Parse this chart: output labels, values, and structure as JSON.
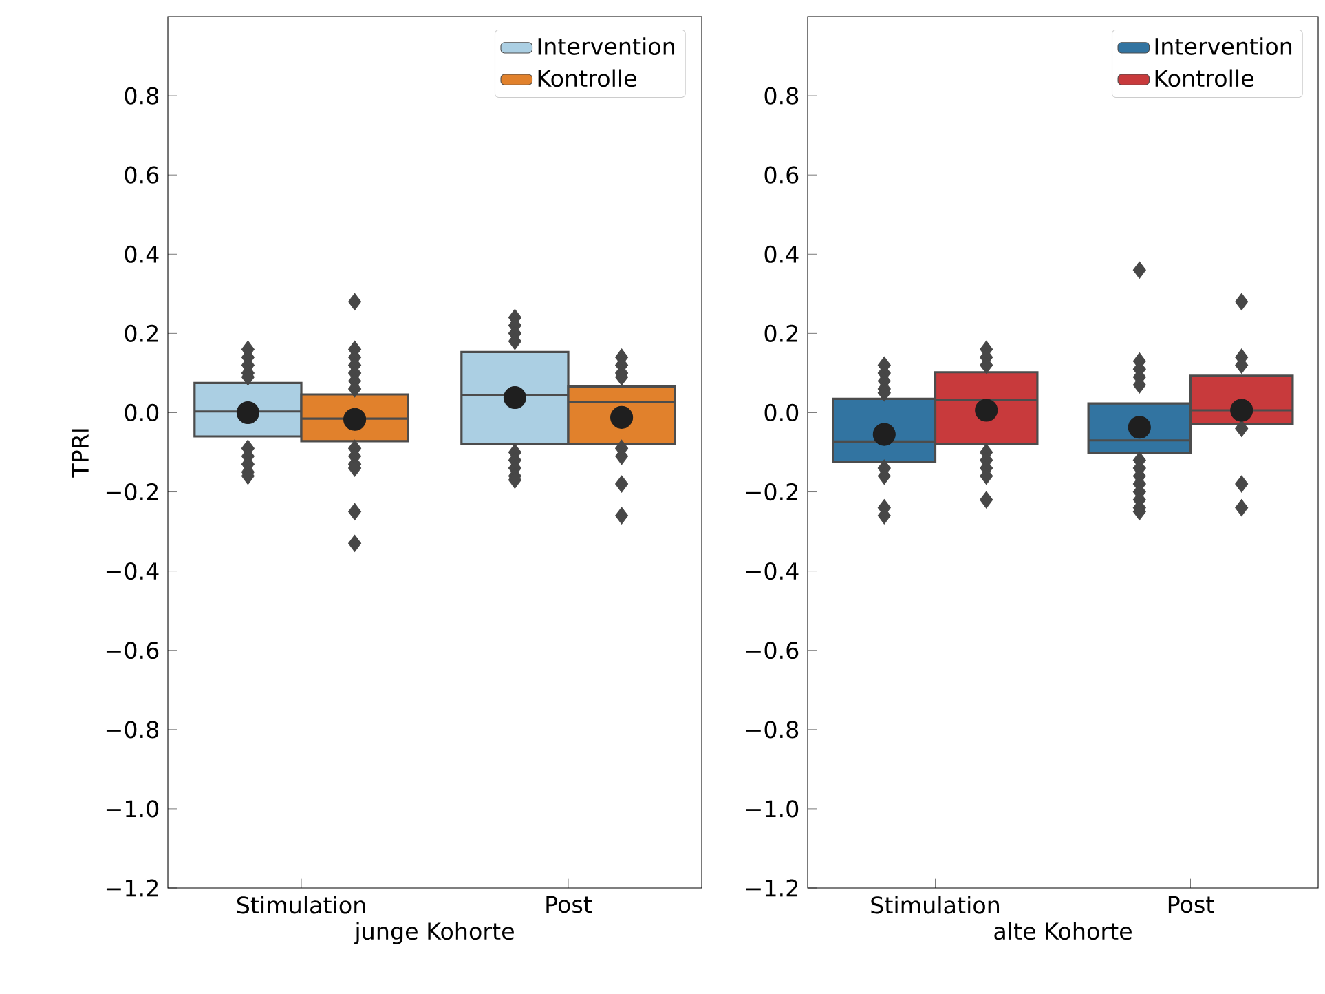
{
  "chart_data": [
    {
      "type": "box",
      "categories": [
        "Stimulation",
        "Post"
      ],
      "xlabel": "junge Kohorte",
      "ylabel": "TPRI",
      "ylim": [
        -1.2,
        1.0
      ],
      "yticks": [
        {
          "value": -1.2,
          "label": "−1.2"
        },
        {
          "value": -1.0,
          "label": "−1.0"
        },
        {
          "value": -0.8,
          "label": "−0.8"
        },
        {
          "value": -0.6,
          "label": "−0.6"
        },
        {
          "value": -0.4,
          "label": "−0.4"
        },
        {
          "value": -0.2,
          "label": "−0.2"
        },
        {
          "value": 0.0,
          "label": "0.0"
        },
        {
          "value": 0.2,
          "label": "0.2"
        },
        {
          "value": 0.4,
          "label": "0.4"
        },
        {
          "value": 0.6,
          "label": "0.6"
        },
        {
          "value": 0.8,
          "label": "0.8"
        }
      ],
      "legend": "top right",
      "grid": false,
      "series": [
        {
          "name": "Intervention",
          "color": "#abcfe3",
          "boxes": [
            {
              "low": -0.06,
              "q1": -0.06,
              "median": 0.003,
              "q3": 0.075,
              "high": 0.075,
              "mean": 0.0,
              "outliers": [
                0.16,
                0.14,
                0.12,
                0.1,
                0.09,
                -0.09,
                -0.11,
                -0.13,
                -0.15,
                -0.16
              ]
            },
            {
              "low": -0.079,
              "q1": -0.079,
              "median": 0.044,
              "q3": 0.153,
              "high": 0.153,
              "mean": 0.038,
              "outliers": [
                0.24,
                0.22,
                0.2,
                0.18,
                -0.1,
                -0.12,
                -0.14,
                -0.16,
                -0.17
              ]
            }
          ]
        },
        {
          "name": "Kontrolle",
          "color": "#e1812c",
          "boxes": [
            {
              "low": -0.072,
              "q1": -0.072,
              "median": -0.015,
              "q3": 0.046,
              "high": 0.046,
              "mean": -0.017,
              "outliers": [
                0.28,
                0.16,
                0.14,
                0.12,
                0.1,
                0.08,
                0.06,
                -0.09,
                -0.11,
                -0.13,
                -0.14,
                -0.25,
                -0.33
              ]
            },
            {
              "low": -0.079,
              "q1": -0.079,
              "median": 0.027,
              "q3": 0.066,
              "high": 0.066,
              "mean": -0.012,
              "outliers": [
                0.14,
                0.12,
                0.1,
                0.09,
                -0.09,
                -0.11,
                -0.18,
                -0.26
              ]
            }
          ]
        }
      ]
    },
    {
      "type": "box",
      "categories": [
        "Stimulation",
        "Post"
      ],
      "xlabel": "alte Kohorte",
      "ylim": [
        -1.2,
        1.0
      ],
      "yticks": [
        {
          "value": -1.2,
          "label": "−1.2"
        },
        {
          "value": -1.0,
          "label": "−1.0"
        },
        {
          "value": -0.8,
          "label": "−0.8"
        },
        {
          "value": -0.6,
          "label": "−0.6"
        },
        {
          "value": -0.4,
          "label": "−0.4"
        },
        {
          "value": -0.2,
          "label": "−0.2"
        },
        {
          "value": 0.0,
          "label": "0.0"
        },
        {
          "value": 0.2,
          "label": "0.2"
        },
        {
          "value": 0.4,
          "label": "0.4"
        },
        {
          "value": 0.6,
          "label": "0.6"
        },
        {
          "value": 0.8,
          "label": "0.8"
        }
      ],
      "legend": "top right",
      "grid": false,
      "series": [
        {
          "name": "Intervention",
          "color": "#3274a1",
          "boxes": [
            {
              "low": -0.125,
              "q1": -0.125,
              "median": -0.073,
              "q3": 0.035,
              "high": 0.035,
              "mean": -0.055,
              "outliers": [
                0.12,
                0.1,
                0.08,
                0.06,
                0.05,
                -0.14,
                -0.16,
                -0.24,
                -0.26
              ]
            },
            {
              "low": -0.102,
              "q1": -0.102,
              "median": -0.07,
              "q3": 0.023,
              "high": 0.023,
              "mean": -0.037,
              "outliers": [
                0.36,
                0.13,
                0.11,
                0.09,
                0.07,
                -0.12,
                -0.14,
                -0.16,
                -0.18,
                -0.2,
                -0.22,
                -0.24,
                -0.25
              ]
            }
          ]
        },
        {
          "name": "Kontrolle",
          "color": "#c83a3c",
          "boxes": [
            {
              "low": -0.079,
              "q1": -0.079,
              "median": 0.032,
              "q3": 0.102,
              "high": 0.102,
              "mean": 0.006,
              "outliers": [
                0.16,
                0.14,
                0.12,
                -0.1,
                -0.12,
                -0.14,
                -0.16,
                -0.22
              ]
            },
            {
              "low": -0.029,
              "q1": -0.029,
              "median": 0.006,
              "q3": 0.093,
              "high": 0.093,
              "mean": 0.006,
              "outliers": [
                0.28,
                0.14,
                0.12,
                -0.04,
                -0.18,
                -0.24
              ]
            }
          ]
        }
      ]
    }
  ]
}
